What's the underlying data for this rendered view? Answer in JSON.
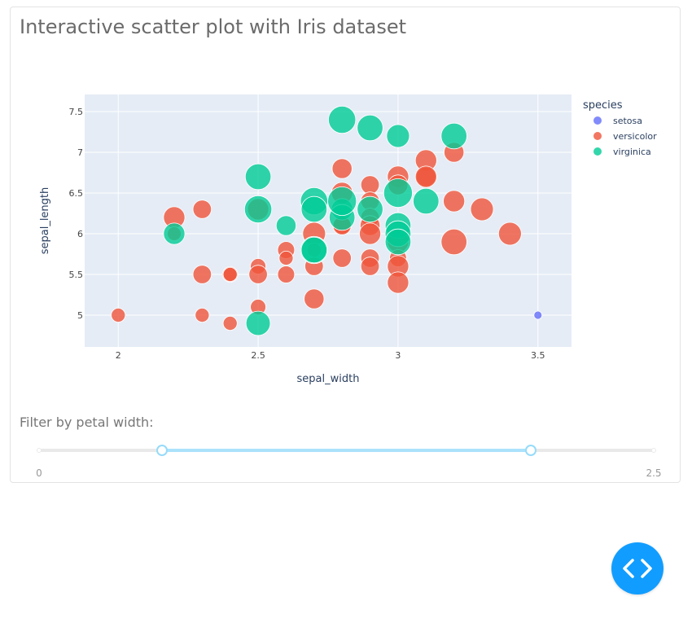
{
  "page": {
    "title": "Interactive scatter plot with Iris dataset",
    "filter_label": "Filter by petal width:"
  },
  "slider": {
    "min": 0,
    "max": 2.5,
    "min_label": "0",
    "max_label": "2.5",
    "value": [
      0.5,
      2.0
    ]
  },
  "fab": {
    "icon": "code-icon",
    "color": "#119dff"
  },
  "chart_data": {
    "type": "scatter",
    "title": "",
    "xlabel": "sepal_width",
    "ylabel": "sepal_length",
    "xlim": [
      1.88,
      3.62
    ],
    "ylim": [
      4.61,
      7.71
    ],
    "xticks": [
      2,
      2.5,
      3,
      3.5
    ],
    "xtick_labels": [
      "2",
      "2.5",
      "3",
      "3.5"
    ],
    "yticks": [
      5,
      5.5,
      6,
      6.5,
      7,
      7.5
    ],
    "ytick_labels": [
      "5",
      "5.5",
      "6",
      "6.5",
      "7",
      "7.5"
    ],
    "grid": true,
    "legend_title": "species",
    "legend_position": "right",
    "series": [
      {
        "name": "setosa",
        "color": "#636efa",
        "points": [
          [
            3.5,
            5.0,
            0.6
          ]
        ]
      },
      {
        "name": "versicolor",
        "color": "#ef553b",
        "points": [
          [
            2.0,
            5.0,
            1.0
          ],
          [
            2.2,
            6.2,
            1.5
          ],
          [
            2.2,
            6.0,
            1.0
          ],
          [
            2.3,
            6.3,
            1.3
          ],
          [
            2.3,
            5.5,
            1.3
          ],
          [
            2.3,
            5.0,
            1.0
          ],
          [
            2.4,
            5.5,
            1.1
          ],
          [
            2.4,
            5.5,
            1.0
          ],
          [
            2.4,
            4.9,
            1.0
          ],
          [
            2.5,
            6.3,
            1.5
          ],
          [
            2.5,
            5.6,
            1.1
          ],
          [
            2.5,
            5.5,
            1.3
          ],
          [
            2.5,
            5.1,
            1.1
          ],
          [
            2.6,
            5.8,
            1.2
          ],
          [
            2.6,
            5.7,
            1.0
          ],
          [
            2.6,
            5.5,
            1.2
          ],
          [
            2.7,
            6.0,
            1.6
          ],
          [
            2.7,
            5.8,
            1.0
          ],
          [
            2.7,
            5.6,
            1.3
          ],
          [
            2.7,
            5.2,
            1.4
          ],
          [
            2.8,
            6.8,
            1.4
          ],
          [
            2.8,
            6.5,
            1.5
          ],
          [
            2.8,
            6.1,
            1.2
          ],
          [
            2.8,
            6.1,
            1.3
          ],
          [
            2.8,
            5.7,
            1.3
          ],
          [
            2.9,
            6.6,
            1.3
          ],
          [
            2.9,
            6.4,
            1.3
          ],
          [
            2.9,
            6.2,
            1.3
          ],
          [
            2.9,
            6.1,
            1.4
          ],
          [
            2.9,
            6.0,
            1.5
          ],
          [
            2.9,
            5.7,
            1.3
          ],
          [
            2.9,
            5.6,
            1.3
          ],
          [
            3.0,
            6.7,
            1.5
          ],
          [
            3.0,
            6.6,
            1.4
          ],
          [
            3.0,
            5.9,
            1.5
          ],
          [
            3.0,
            5.7,
            1.2
          ],
          [
            3.0,
            5.6,
            1.5
          ],
          [
            3.0,
            5.4,
            1.5
          ],
          [
            3.1,
            6.9,
            1.5
          ],
          [
            3.1,
            6.7,
            1.4
          ],
          [
            3.1,
            6.7,
            1.5
          ],
          [
            3.2,
            7.0,
            1.4
          ],
          [
            3.2,
            6.4,
            1.5
          ],
          [
            3.2,
            5.9,
            1.8
          ],
          [
            3.3,
            6.3,
            1.6
          ],
          [
            3.4,
            6.0,
            1.6
          ]
        ]
      },
      {
        "name": "virginica",
        "color": "#00cc96",
        "points": [
          [
            2.2,
            6.0,
            1.5
          ],
          [
            2.5,
            6.7,
            1.8
          ],
          [
            2.5,
            6.3,
            1.9
          ],
          [
            2.5,
            4.9,
            1.7
          ],
          [
            2.6,
            6.1,
            1.4
          ],
          [
            2.7,
            6.4,
            1.9
          ],
          [
            2.7,
            6.3,
            1.8
          ],
          [
            2.7,
            5.8,
            1.9
          ],
          [
            2.7,
            5.8,
            1.8
          ],
          [
            2.8,
            7.4,
            1.9
          ],
          [
            2.8,
            6.3,
            1.5
          ],
          [
            2.8,
            6.2,
            1.8
          ],
          [
            2.8,
            6.4,
            2.0
          ],
          [
            2.9,
            7.3,
            1.8
          ],
          [
            2.9,
            6.3,
            1.8
          ],
          [
            3.0,
            7.2,
            1.6
          ],
          [
            3.0,
            6.5,
            2.0
          ],
          [
            3.0,
            6.1,
            1.8
          ],
          [
            3.0,
            6.0,
            1.8
          ],
          [
            3.0,
            5.9,
            1.8
          ],
          [
            3.1,
            6.4,
            1.8
          ],
          [
            3.2,
            7.2,
            1.8
          ]
        ]
      }
    ]
  }
}
